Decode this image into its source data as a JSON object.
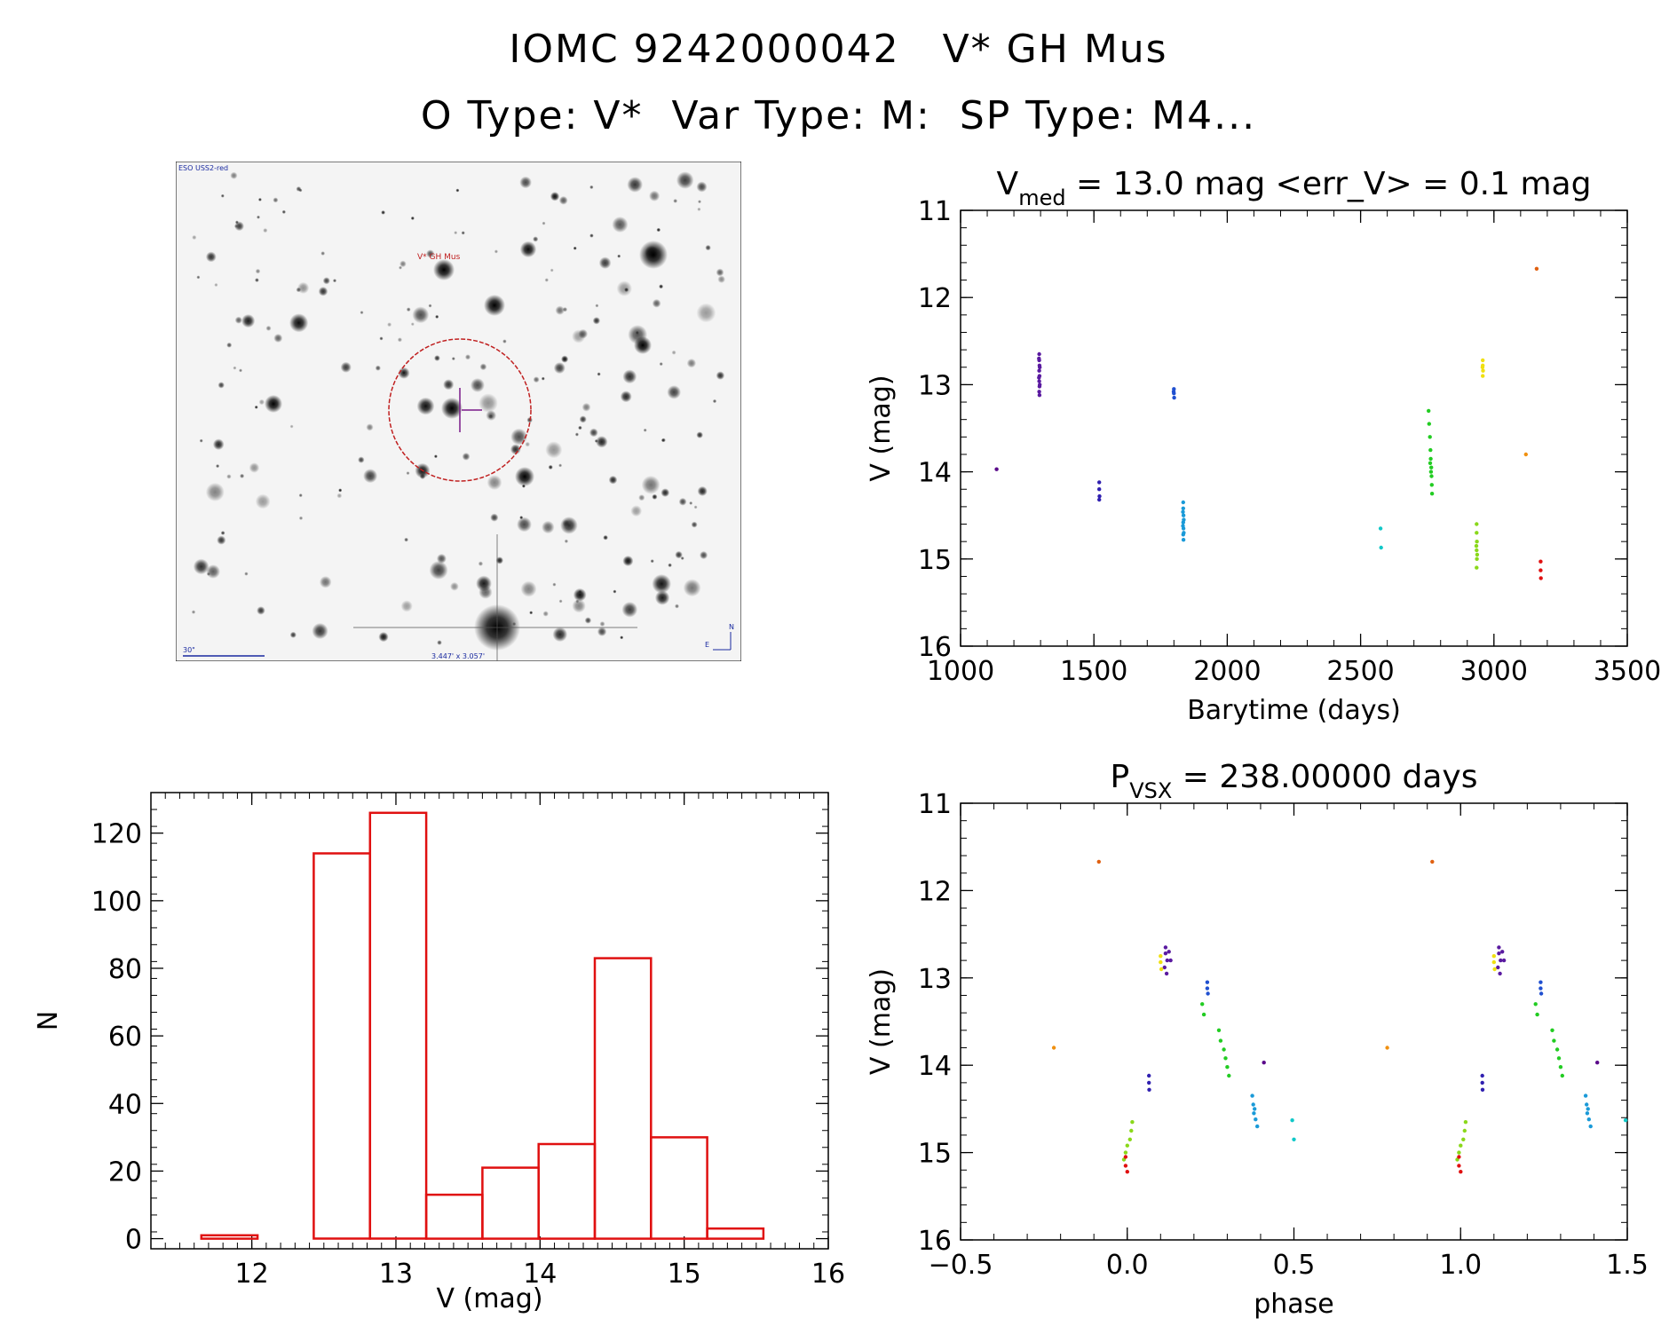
{
  "header": {
    "title": "IOMC 9242000042   V* GH Mus",
    "subtitle": "O Type: V*  Var Type: M:  SP Type: M4..."
  },
  "sky_image": {
    "survey_label": "ESO USS2-red",
    "target_label": "V* GH Mus",
    "scale_label": "30\"",
    "fov_label": "3.447' x 3.057'",
    "north_label": "N",
    "east_label": "E"
  },
  "colors": {
    "histogram": "#e01010",
    "axis": "#000000",
    "circle": "#c02020",
    "crosshair": "#7a1a8a",
    "annotation": "#1a2aa0"
  },
  "chart_data": [
    {
      "id": "lightcurve",
      "type": "scatter",
      "title_main": "V",
      "title_sub": "med",
      "title_rest": " = 13.0 mag <err_V> = 0.1 mag",
      "xlabel": "Barytime (days)",
      "ylabel": "V (mag)",
      "xlim": [
        1000,
        3500
      ],
      "ylim": [
        16,
        11
      ],
      "xticks": [
        1000,
        1500,
        2000,
        2500,
        3000,
        3500
      ],
      "yticks": [
        11,
        12,
        13,
        14,
        15,
        16
      ],
      "series": [
        {
          "name": "g1",
          "color": "#5a0a8a",
          "points": [
            [
              1135,
              13.97
            ]
          ]
        },
        {
          "name": "g2",
          "color": "#5a1aa0",
          "points": [
            [
              1295,
              12.65
            ],
            [
              1295,
              12.72
            ],
            [
              1296,
              12.78
            ],
            [
              1295,
              12.84
            ],
            [
              1296,
              12.9
            ],
            [
              1295,
              12.96
            ],
            [
              1296,
              13.02
            ],
            [
              1295,
              13.08
            ],
            [
              1296,
              13.12
            ],
            [
              1294,
              12.7
            ],
            [
              1297,
              12.8
            ],
            [
              1294,
              12.92
            ],
            [
              1297,
              13.0
            ]
          ]
        },
        {
          "name": "g3",
          "color": "#3020b0",
          "points": [
            [
              1520,
              14.12
            ],
            [
              1520,
              14.2
            ],
            [
              1521,
              14.28
            ],
            [
              1520,
              14.32
            ]
          ]
        },
        {
          "name": "g4",
          "color": "#2050d0",
          "points": [
            [
              1800,
              13.05
            ],
            [
              1800,
              13.1
            ],
            [
              1801,
              13.15
            ],
            [
              1799,
              13.08
            ]
          ]
        },
        {
          "name": "g5",
          "color": "#1a9ad8",
          "points": [
            [
              1835,
              14.35
            ],
            [
              1835,
              14.42
            ],
            [
              1836,
              14.5
            ],
            [
              1835,
              14.58
            ],
            [
              1836,
              14.65
            ],
            [
              1835,
              14.72
            ],
            [
              1836,
              14.78
            ],
            [
              1834,
              14.46
            ],
            [
              1837,
              14.55
            ],
            [
              1834,
              14.62
            ],
            [
              1837,
              14.7
            ]
          ]
        },
        {
          "name": "g6",
          "color": "#10c8c8",
          "points": [
            [
              2575,
              14.65
            ],
            [
              2577,
              14.87
            ]
          ]
        },
        {
          "name": "g7",
          "color": "#22cc22",
          "points": [
            [
              2755,
              13.3
            ],
            [
              2757,
              13.45
            ],
            [
              2760,
              13.6
            ],
            [
              2762,
              13.75
            ],
            [
              2763,
              13.85
            ],
            [
              2765,
              13.95
            ],
            [
              2766,
              14.05
            ],
            [
              2767,
              14.15
            ],
            [
              2768,
              14.25
            ],
            [
              2761,
              13.9
            ],
            [
              2764,
              14.0
            ]
          ]
        },
        {
          "name": "g8",
          "color": "#8ad81a",
          "points": [
            [
              2935,
              14.6
            ],
            [
              2935,
              14.7
            ],
            [
              2936,
              14.8
            ],
            [
              2935,
              14.9
            ],
            [
              2936,
              15.0
            ],
            [
              2935,
              15.1
            ],
            [
              2934,
              14.85
            ],
            [
              2937,
              14.95
            ]
          ]
        },
        {
          "name": "g9",
          "color": "#f0e010",
          "points": [
            [
              2958,
              12.72
            ],
            [
              2958,
              12.78
            ],
            [
              2959,
              12.84
            ],
            [
              2958,
              12.9
            ],
            [
              2957,
              12.8
            ]
          ]
        },
        {
          "name": "g10",
          "color": "#f09010",
          "points": [
            [
              3120,
              13.8
            ]
          ]
        },
        {
          "name": "g11",
          "color": "#e06010",
          "points": [
            [
              3160,
              11.67
            ]
          ]
        },
        {
          "name": "g12",
          "color": "#e01010",
          "points": [
            [
              3175,
              15.03
            ],
            [
              3175,
              15.13
            ],
            [
              3176,
              15.22
            ]
          ]
        }
      ]
    },
    {
      "id": "phased",
      "type": "scatter",
      "title_main": "P",
      "title_sub": "VSX",
      "title_rest": " = 238.00000 days",
      "xlabel": "phase",
      "ylabel": "V (mag)",
      "xlim": [
        -0.5,
        1.5
      ],
      "ylim": [
        16,
        11
      ],
      "xticks": [
        -0.5,
        0.0,
        0.5,
        1.0,
        1.5
      ],
      "xtick_labels": [
        "−0.5",
        "0.0",
        "0.5",
        "1.0",
        "1.5"
      ],
      "yticks": [
        11,
        12,
        13,
        14,
        15,
        16
      ],
      "series": [
        {
          "name": "g1",
          "color": "#5a0a8a",
          "points": [
            [
              0.41,
              13.97
            ],
            [
              1.41,
              13.97
            ]
          ]
        },
        {
          "name": "g2",
          "color": "#5a1aa0",
          "points": [
            [
              0.115,
              12.65
            ],
            [
              0.115,
              12.72
            ],
            [
              0.12,
              12.8
            ],
            [
              0.112,
              12.88
            ],
            [
              0.118,
              12.95
            ],
            [
              0.125,
              12.7
            ],
            [
              0.13,
              12.8
            ],
            [
              1.115,
              12.65
            ],
            [
              1.115,
              12.72
            ],
            [
              1.12,
              12.8
            ],
            [
              1.112,
              12.88
            ],
            [
              1.118,
              12.95
            ],
            [
              1.125,
              12.7
            ],
            [
              1.13,
              12.8
            ]
          ]
        },
        {
          "name": "g3",
          "color": "#3020b0",
          "points": [
            [
              0.065,
              14.12
            ],
            [
              0.065,
              14.2
            ],
            [
              0.066,
              14.28
            ],
            [
              1.065,
              14.12
            ],
            [
              1.065,
              14.2
            ],
            [
              1.066,
              14.28
            ]
          ]
        },
        {
          "name": "g4",
          "color": "#2050d0",
          "points": [
            [
              0.24,
              13.05
            ],
            [
              0.24,
              13.12
            ],
            [
              0.242,
              13.18
            ],
            [
              1.24,
              13.05
            ],
            [
              1.24,
              13.12
            ],
            [
              1.242,
              13.18
            ]
          ]
        },
        {
          "name": "g5",
          "color": "#1a9ad8",
          "points": [
            [
              0.375,
              14.35
            ],
            [
              0.378,
              14.45
            ],
            [
              0.38,
              14.55
            ],
            [
              0.385,
              14.62
            ],
            [
              0.39,
              14.7
            ],
            [
              0.382,
              14.5
            ],
            [
              1.375,
              14.35
            ],
            [
              1.378,
              14.45
            ],
            [
              1.38,
              14.55
            ],
            [
              1.385,
              14.62
            ],
            [
              1.39,
              14.7
            ],
            [
              1.382,
              14.5
            ]
          ]
        },
        {
          "name": "g6",
          "color": "#10c8c8",
          "points": [
            [
              0.495,
              14.63
            ],
            [
              0.5,
              14.85
            ],
            [
              1.495,
              14.63
            ]
          ]
        },
        {
          "name": "g7",
          "color": "#22cc22",
          "points": [
            [
              0.225,
              13.3
            ],
            [
              0.23,
              13.42
            ],
            [
              0.275,
              13.6
            ],
            [
              0.28,
              13.72
            ],
            [
              0.29,
              13.82
            ],
            [
              0.295,
              13.92
            ],
            [
              0.3,
              14.02
            ],
            [
              0.305,
              14.12
            ],
            [
              1.225,
              13.3
            ],
            [
              1.23,
              13.42
            ],
            [
              1.275,
              13.6
            ],
            [
              1.28,
              13.72
            ],
            [
              1.29,
              13.82
            ],
            [
              1.295,
              13.92
            ],
            [
              1.3,
              14.02
            ],
            [
              1.305,
              14.12
            ]
          ]
        },
        {
          "name": "g8",
          "color": "#8ad81a",
          "points": [
            [
              0.015,
              14.65
            ],
            [
              0.012,
              14.75
            ],
            [
              0.008,
              14.85
            ],
            [
              0.0,
              14.92
            ],
            [
              -0.005,
              15.0
            ],
            [
              -0.01,
              15.08
            ],
            [
              1.015,
              14.65
            ],
            [
              1.012,
              14.75
            ],
            [
              1.008,
              14.85
            ],
            [
              1.0,
              14.92
            ],
            [
              0.995,
              15.0
            ],
            [
              0.99,
              15.08
            ]
          ]
        },
        {
          "name": "g9",
          "color": "#f0e010",
          "points": [
            [
              0.1,
              12.75
            ],
            [
              0.1,
              12.82
            ],
            [
              0.102,
              12.9
            ],
            [
              1.1,
              12.75
            ],
            [
              1.1,
              12.82
            ],
            [
              1.102,
              12.9
            ]
          ]
        },
        {
          "name": "g10",
          "color": "#f09010",
          "points": [
            [
              -0.22,
              13.8
            ],
            [
              0.78,
              13.8
            ]
          ]
        },
        {
          "name": "g11",
          "color": "#e06010",
          "points": [
            [
              -0.085,
              11.67
            ],
            [
              0.915,
              11.67
            ]
          ]
        },
        {
          "name": "g12",
          "color": "#e01010",
          "points": [
            [
              -0.005,
              15.05
            ],
            [
              -0.005,
              15.15
            ],
            [
              0.0,
              15.22
            ],
            [
              0.995,
              15.05
            ],
            [
              0.995,
              15.15
            ],
            [
              1.0,
              15.22
            ]
          ]
        }
      ]
    },
    {
      "id": "histogram",
      "type": "bar",
      "xlabel": "V (mag)",
      "ylabel": "N",
      "xlim": [
        11.3,
        16.0
      ],
      "ylim": [
        -3,
        132
      ],
      "xticks": [
        12,
        13,
        14,
        15,
        16
      ],
      "yticks": [
        0,
        20,
        40,
        60,
        80,
        100,
        120
      ],
      "bin_edges": [
        11.65,
        12.04,
        12.43,
        12.82,
        13.21,
        13.6,
        13.99,
        14.38,
        14.77,
        15.16,
        15.55
      ],
      "values": [
        1,
        0,
        114,
        126,
        13,
        21,
        28,
        83,
        30,
        3
      ]
    }
  ]
}
